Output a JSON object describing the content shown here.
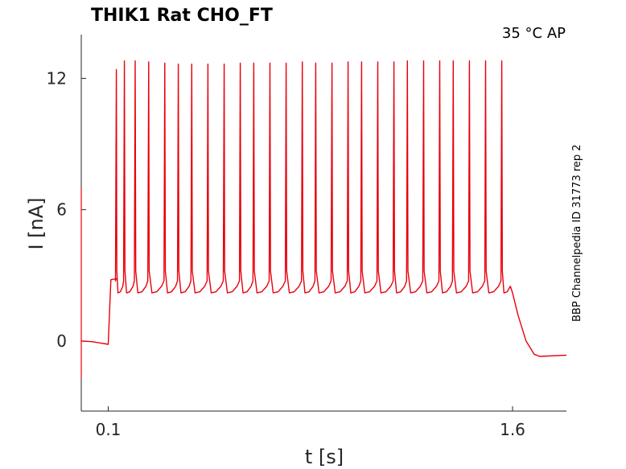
{
  "chart_data": {
    "type": "line",
    "title": "THIK1  Rat  CHO_FT",
    "condition": "35 °C  AP",
    "source_label": "BBP Channelpedia ID 31773 rep 2",
    "xlabel": "t [s]",
    "ylabel": "I [nA]",
    "x_ticks": [
      {
        "value": 0.1,
        "label": "0.1"
      },
      {
        "value": 1.6,
        "label": "1.6"
      }
    ],
    "y_ticks": [
      {
        "value": 0,
        "label": "0"
      },
      {
        "value": 6,
        "label": "6"
      },
      {
        "value": 12,
        "label": "12"
      }
    ],
    "xlim": [
      0.0,
      1.8
    ],
    "ylim": [
      -3.2,
      14.0
    ],
    "grid": false,
    "legend": "none",
    "series_color": "#e8000b",
    "series": [
      {
        "baseline": [
          [
            0.0,
            0.0
          ],
          [
            0.04,
            -0.03
          ],
          [
            0.1,
            -0.15
          ],
          [
            0.11,
            2.8
          ],
          [
            0.13,
            2.85
          ]
        ],
        "spike_times": [
          0.13,
          0.16,
          0.2,
          0.25,
          0.31,
          0.36,
          0.41,
          0.47,
          0.53,
          0.59,
          0.64,
          0.7,
          0.76,
          0.82,
          0.87,
          0.93,
          0.99,
          1.04,
          1.1,
          1.16,
          1.21,
          1.27,
          1.33,
          1.38,
          1.44,
          1.5,
          1.56
        ],
        "spike_peaks": [
          12.4,
          12.8,
          12.8,
          12.75,
          12.7,
          12.65,
          12.65,
          12.65,
          12.65,
          12.7,
          12.7,
          12.7,
          12.7,
          12.75,
          12.7,
          12.7,
          12.75,
          12.75,
          12.75,
          12.75,
          12.8,
          12.8,
          12.8,
          12.8,
          12.8,
          12.8,
          12.8
        ],
        "interspike_trough": 2.2,
        "pre_spike_level": 2.75,
        "step_end": 1.6,
        "tail": [
          [
            1.6,
            2.2
          ],
          [
            1.62,
            1.2
          ],
          [
            1.65,
            0.0
          ],
          [
            1.68,
            -0.6
          ],
          [
            1.7,
            -0.7
          ],
          [
            1.8,
            -0.65
          ]
        ]
      }
    ]
  }
}
